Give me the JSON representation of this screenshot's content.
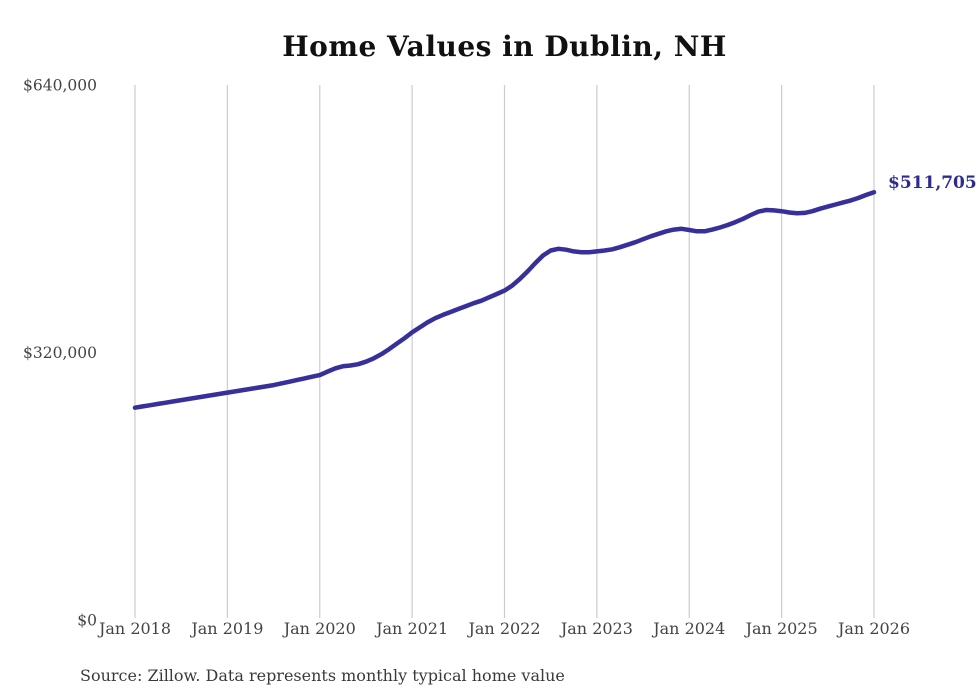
{
  "title": "Home Values in Dublin, NH",
  "source_note": "Source: Zillow. Data represents monthly typical home value",
  "latest_value_label": "$511,705",
  "colors": {
    "line": "#37309b",
    "end_label": "#2d2b8f",
    "grid": "#cccccc",
    "axis_text": "#444444",
    "title_text": "#111111"
  },
  "chart_data": {
    "type": "line",
    "title": "Home Values in Dublin, NH",
    "xlabel": "",
    "ylabel": "",
    "ylim": [
      0,
      640000
    ],
    "grid": "vertical-only",
    "legend": "none",
    "y_ticks": [
      {
        "value": 0,
        "label": "$0"
      },
      {
        "value": 320000,
        "label": "$320,000"
      },
      {
        "value": 640000,
        "label": "$640,000"
      }
    ],
    "x_tick_labels": [
      "Jan 2018",
      "Jan 2019",
      "Jan 2020",
      "Jan 2021",
      "Jan 2022",
      "Jan 2023",
      "Jan 2024",
      "Jan 2025",
      "Jan 2026"
    ],
    "x_tick_month_indexes": [
      0,
      12,
      24,
      36,
      48,
      60,
      72,
      84,
      96
    ],
    "end_label": "$511,705",
    "months": [
      "2018-01",
      "2018-02",
      "2018-03",
      "2018-04",
      "2018-05",
      "2018-06",
      "2018-07",
      "2018-08",
      "2018-09",
      "2018-10",
      "2018-11",
      "2018-12",
      "2019-01",
      "2019-02",
      "2019-03",
      "2019-04",
      "2019-05",
      "2019-06",
      "2019-07",
      "2019-08",
      "2019-09",
      "2019-10",
      "2019-11",
      "2019-12",
      "2020-01",
      "2020-02",
      "2020-03",
      "2020-04",
      "2020-05",
      "2020-06",
      "2020-07",
      "2020-08",
      "2020-09",
      "2020-10",
      "2020-11",
      "2020-12",
      "2021-01",
      "2021-02",
      "2021-03",
      "2021-04",
      "2021-05",
      "2021-06",
      "2021-07",
      "2021-08",
      "2021-09",
      "2021-10",
      "2021-11",
      "2021-12",
      "2022-01",
      "2022-02",
      "2022-03",
      "2022-04",
      "2022-05",
      "2022-06",
      "2022-07",
      "2022-08",
      "2022-09",
      "2022-10",
      "2022-11",
      "2022-12",
      "2023-01",
      "2023-02",
      "2023-03",
      "2023-04",
      "2023-05",
      "2023-06",
      "2023-07",
      "2023-08",
      "2023-09",
      "2023-10",
      "2023-11",
      "2023-12",
      "2024-01",
      "2024-02",
      "2024-03",
      "2024-04",
      "2024-05",
      "2024-06",
      "2024-07",
      "2024-08",
      "2024-09",
      "2024-10",
      "2024-11",
      "2024-12",
      "2025-01",
      "2025-02",
      "2025-03",
      "2025-04",
      "2025-05",
      "2025-06",
      "2025-07",
      "2025-08",
      "2025-09",
      "2025-10",
      "2025-11",
      "2025-12",
      "2026-01"
    ],
    "values": [
      254000,
      255500,
      257000,
      258500,
      260000,
      261500,
      263000,
      264500,
      266000,
      267500,
      269000,
      270500,
      272000,
      273500,
      275000,
      276500,
      278000,
      279500,
      281000,
      283000,
      285000,
      287000,
      289000,
      291000,
      293000,
      297000,
      301000,
      303500,
      304500,
      306000,
      309000,
      313000,
      318000,
      324000,
      330500,
      337000,
      344000,
      350000,
      356000,
      361000,
      365000,
      368500,
      372000,
      375500,
      379000,
      382000,
      386000,
      390000,
      394000,
      400000,
      408000,
      417000,
      427000,
      436000,
      442000,
      444000,
      443000,
      441000,
      440000,
      440000,
      441000,
      442000,
      443500,
      446000,
      449000,
      452000,
      455500,
      459000,
      462000,
      465000,
      467000,
      468000,
      466500,
      465000,
      465000,
      467000,
      469500,
      472500,
      476000,
      480000,
      484500,
      488500,
      490500,
      490000,
      489000,
      487500,
      486500,
      487000,
      489000,
      492000,
      494500,
      497000,
      499500,
      502000,
      505000,
      508500,
      511705
    ]
  }
}
